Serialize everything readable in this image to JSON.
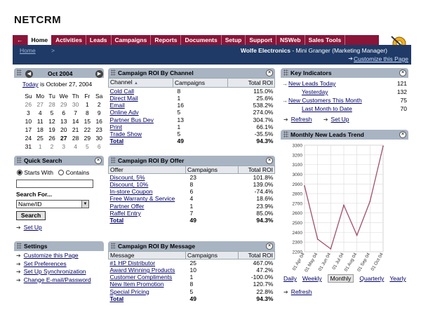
{
  "app": {
    "logo": "NETCRM"
  },
  "nav": {
    "back_label": "←",
    "tabs": [
      "Home",
      "Activities",
      "Leads",
      "Campaigns",
      "Reports",
      "Documents",
      "Setup",
      "Support",
      "NSWeb",
      "Sales Tools"
    ],
    "active_index": 0
  },
  "subbar": {
    "breadcrumb": "Home",
    "breadcrumb_arrow": ">",
    "company": "Wolfe Electronics",
    "user": "Mini Granger",
    "role": "(Marketing Manager)",
    "separator": "-",
    "customize": "Customize this Page"
  },
  "calendar": {
    "month": "Oct 2004",
    "today_link": "Today",
    "today_text": "is October 27, 2004",
    "weekdays": [
      "Su",
      "Mo",
      "Tu",
      "We",
      "Th",
      "Fr",
      "Sa"
    ],
    "weeks": [
      [
        "26",
        "27",
        "28",
        "29",
        "30",
        "1",
        "2"
      ],
      [
        "3",
        "4",
        "5",
        "6",
        "7",
        "8",
        "9"
      ],
      [
        "10",
        "11",
        "12",
        "13",
        "14",
        "15",
        "16"
      ],
      [
        "17",
        "18",
        "19",
        "20",
        "21",
        "22",
        "23"
      ],
      [
        "24",
        "25",
        "26",
        "27",
        "28",
        "29",
        "30"
      ],
      [
        "31",
        "1",
        "2",
        "3",
        "4",
        "5",
        "6"
      ]
    ]
  },
  "quick_search": {
    "title": "Quick Search",
    "opt_starts": "Starts With",
    "opt_contains": "Contains",
    "input_value": "",
    "search_for_label": "Search For...",
    "select_value": "Name/ID",
    "search_button": "Search",
    "setup_link": "Set Up"
  },
  "settings": {
    "title": "Settings",
    "links": [
      "Customize this Page",
      "Set Preferences",
      "Set Up Synchronization",
      "Change E-mail/Password"
    ]
  },
  "roi_channel": {
    "title": "Campaign ROI By Channel",
    "headers": [
      "Channel",
      "Campaigns",
      "Total ROI"
    ],
    "sort_arrow": "▲",
    "rows": [
      [
        "Cold Call",
        "8",
        "115.0%"
      ],
      [
        "Direct Mail",
        "1",
        "25.6%"
      ],
      [
        "Email",
        "16",
        "538.2%"
      ],
      [
        "Online Adv",
        "5",
        "274.0%"
      ],
      [
        "Partner Bus Dev",
        "13",
        "304.7%"
      ],
      [
        "Print",
        "1",
        "66.1%"
      ],
      [
        "Trade Show",
        "5",
        "-35.5%"
      ]
    ],
    "total": [
      "Total",
      "49",
      "94.3%"
    ]
  },
  "roi_offer": {
    "title": "Campaign ROI By Offer",
    "headers": [
      "Offer",
      "Campaigns",
      "Total ROI"
    ],
    "rows": [
      [
        "Discount, 5%",
        "23",
        "101.8%"
      ],
      [
        "Discount, 10%",
        "8",
        "139.0%"
      ],
      [
        "In-store Coupon",
        "6",
        "-74.4%"
      ],
      [
        "Free Warranty & Service",
        "4",
        "18.6%"
      ],
      [
        "Partner Offer",
        "1",
        "23.9%"
      ],
      [
        "Raffel Entry",
        "7",
        "85.0%"
      ]
    ],
    "total": [
      "Total",
      "49",
      "94.3%"
    ]
  },
  "roi_message": {
    "title": "Campaign ROI By Message",
    "headers": [
      "Message",
      "Campaigns",
      "Total ROI"
    ],
    "rows": [
      [
        "#1 HP Distributor",
        "25",
        "467.0%"
      ],
      [
        "Award Winning Products",
        "10",
        "47.2%"
      ],
      [
        "Customer Compliments",
        "1",
        "-100.0%"
      ],
      [
        "New Item Promotion",
        "8",
        "120.7%"
      ],
      [
        "Special Pricing",
        "5",
        "22.8%"
      ]
    ],
    "total": [
      "Total",
      "49",
      "94.3%"
    ]
  },
  "key_indicators": {
    "title": "Key Indicators",
    "rows": [
      {
        "label": "New Leads Today",
        "value": "121",
        "indent": false
      },
      {
        "label": "Yesterday",
        "value": "132",
        "indent": true
      },
      {
        "label": "New Customers This Month",
        "value": "75",
        "indent": false
      },
      {
        "label": "Last Month to Date",
        "value": "70",
        "indent": true
      }
    ],
    "refresh": "Refresh",
    "setup": "Set Up"
  },
  "trend": {
    "title": "Monthly New Leads Trend",
    "periods": [
      "Daily",
      "Weekly",
      "Monthly",
      "Quarterly",
      "Yearly"
    ],
    "active_period": "Monthly",
    "refresh": "Refresh",
    "line_color": "#a0506a"
  },
  "chart_data": {
    "type": "line",
    "x": [
      "01 Apr 04",
      "01 May 04",
      "01 Jun 04",
      "01 Jul 04",
      "01 Aug 04",
      "01 Sep 04",
      "01 Oct 04"
    ],
    "series": [
      {
        "values": [
          2880,
          2330,
          2230,
          2680,
          2370,
          2720,
          3290
        ]
      }
    ],
    "ylim": [
      2200,
      3300
    ],
    "yticks": [
      2200,
      2300,
      2400,
      2500,
      2600,
      2700,
      2800,
      2900,
      3000,
      3100,
      3200,
      3300
    ],
    "grid": true
  }
}
